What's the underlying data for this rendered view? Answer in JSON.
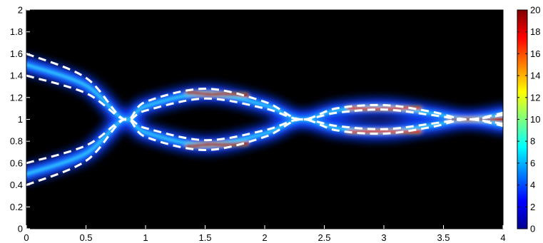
{
  "chart_data": {
    "type": "heatmap",
    "title": "",
    "xlabel": "",
    "ylabel": "",
    "xlim": [
      0,
      4
    ],
    "ylim": [
      0,
      2
    ],
    "x_ticks": [
      "0",
      "0.5",
      "1",
      "1.5",
      "2",
      "2.5",
      "3",
      "3.5",
      "4"
    ],
    "y_ticks": [
      "0",
      "0.2",
      "0.4",
      "0.6",
      "0.8",
      "1",
      "1.2",
      "1.4",
      "1.6",
      "1.8",
      "2"
    ],
    "colorbar": {
      "range": [
        0,
        20
      ],
      "ticks": [
        "0",
        "2",
        "4",
        "6",
        "8",
        "10",
        "12",
        "14",
        "16",
        "18",
        "20"
      ],
      "colormap": "jet"
    },
    "background_color": "#000000",
    "dashed_line_color": "#ffffff",
    "beams": [
      {
        "name": "",
        "lower_boundary": [
          [
            0,
            1.4
          ],
          [
            0.5,
            1.24
          ],
          [
            0.82,
            1.0
          ],
          [
            1.0,
            1.08
          ],
          [
            1.5,
            1.19
          ],
          [
            2.0,
            1.1
          ],
          [
            2.3,
            1.0
          ],
          [
            2.6,
            1.06
          ],
          [
            3.0,
            1.09
          ],
          [
            3.4,
            1.04
          ],
          [
            3.7,
            1.0
          ],
          [
            4.0,
            1.04
          ]
        ],
        "upper_boundary": [
          [
            0,
            1.6
          ],
          [
            0.5,
            1.38
          ],
          [
            0.82,
            1.0
          ],
          [
            1.0,
            1.16
          ],
          [
            1.5,
            1.28
          ],
          [
            2.0,
            1.16
          ],
          [
            2.3,
            1.0
          ],
          [
            2.6,
            1.1
          ],
          [
            3.0,
            1.13
          ],
          [
            3.4,
            1.07
          ],
          [
            3.7,
            1.0
          ],
          [
            4.0,
            1.06
          ]
        ]
      },
      {
        "name": "",
        "lower_boundary": [
          [
            0,
            0.4
          ],
          [
            0.5,
            0.62
          ],
          [
            0.82,
            1.0
          ],
          [
            1.0,
            0.84
          ],
          [
            1.5,
            0.72
          ],
          [
            2.0,
            0.84
          ],
          [
            2.3,
            1.0
          ],
          [
            2.6,
            0.9
          ],
          [
            3.0,
            0.87
          ],
          [
            3.4,
            0.93
          ],
          [
            3.7,
            1.0
          ],
          [
            4.0,
            0.94
          ]
        ],
        "upper_boundary": [
          [
            0,
            0.6
          ],
          [
            0.5,
            0.76
          ],
          [
            0.82,
            1.0
          ],
          [
            1.0,
            0.92
          ],
          [
            1.5,
            0.81
          ],
          [
            2.0,
            0.9
          ],
          [
            2.3,
            1.0
          ],
          [
            2.6,
            0.94
          ],
          [
            3.0,
            0.91
          ],
          [
            3.4,
            0.96
          ],
          [
            3.7,
            1.0
          ],
          [
            4.0,
            0.96
          ]
        ]
      }
    ],
    "peak_intensity_segments": [
      {
        "x": [
          1.35,
          1.85
        ],
        "y": [
          1.24,
          1.22
        ],
        "level": 18
      },
      {
        "x": [
          1.35,
          1.85
        ],
        "y": [
          0.76,
          0.78
        ],
        "level": 18
      },
      {
        "x": [
          2.7,
          3.3
        ],
        "y": [
          1.1,
          1.1
        ],
        "level": 17
      },
      {
        "x": [
          2.7,
          3.3
        ],
        "y": [
          0.89,
          0.89
        ],
        "level": 17
      },
      {
        "x": [
          3.55,
          4.0
        ],
        "y": [
          1.0,
          1.0
        ],
        "level": 19
      }
    ]
  }
}
